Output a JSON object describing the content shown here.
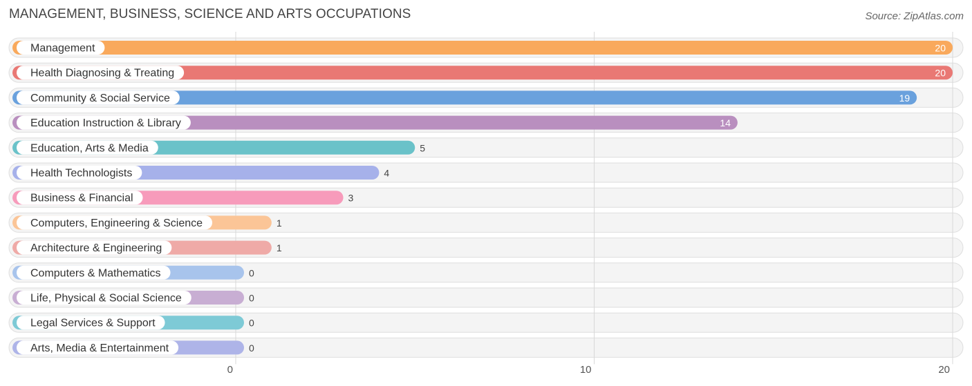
{
  "title": "MANAGEMENT, BUSINESS, SCIENCE AND ARTS OCCUPATIONS",
  "source": "Source: ZipAtlas.com",
  "chart_data": {
    "type": "bar",
    "orientation": "horizontal",
    "title": "MANAGEMENT, BUSINESS, SCIENCE AND ARTS OCCUPATIONS",
    "xlabel": "",
    "ylabel": "",
    "xlim": [
      0,
      20
    ],
    "ticks": [
      0,
      10,
      20
    ],
    "grid": true,
    "categories": [
      "Management",
      "Health Diagnosing & Treating",
      "Community & Social Service",
      "Education Instruction & Library",
      "Education, Arts & Media",
      "Health Technologists",
      "Business & Financial",
      "Computers, Engineering & Science",
      "Architecture & Engineering",
      "Computers & Mathematics",
      "Life, Physical & Social Science",
      "Legal Services & Support",
      "Arts, Media & Entertainment"
    ],
    "values": [
      20,
      20,
      19,
      14,
      5,
      4,
      3,
      1,
      1,
      0,
      0,
      0,
      0
    ],
    "colors": [
      "#f9a95c",
      "#e97874",
      "#6aa1dd",
      "#b98fbf",
      "#6ac2c9",
      "#a6b1ea",
      "#f79bbb",
      "#fbc597",
      "#efaaa7",
      "#a8c4ec",
      "#c8aed3",
      "#7ecad6",
      "#aeb4e8"
    ]
  }
}
